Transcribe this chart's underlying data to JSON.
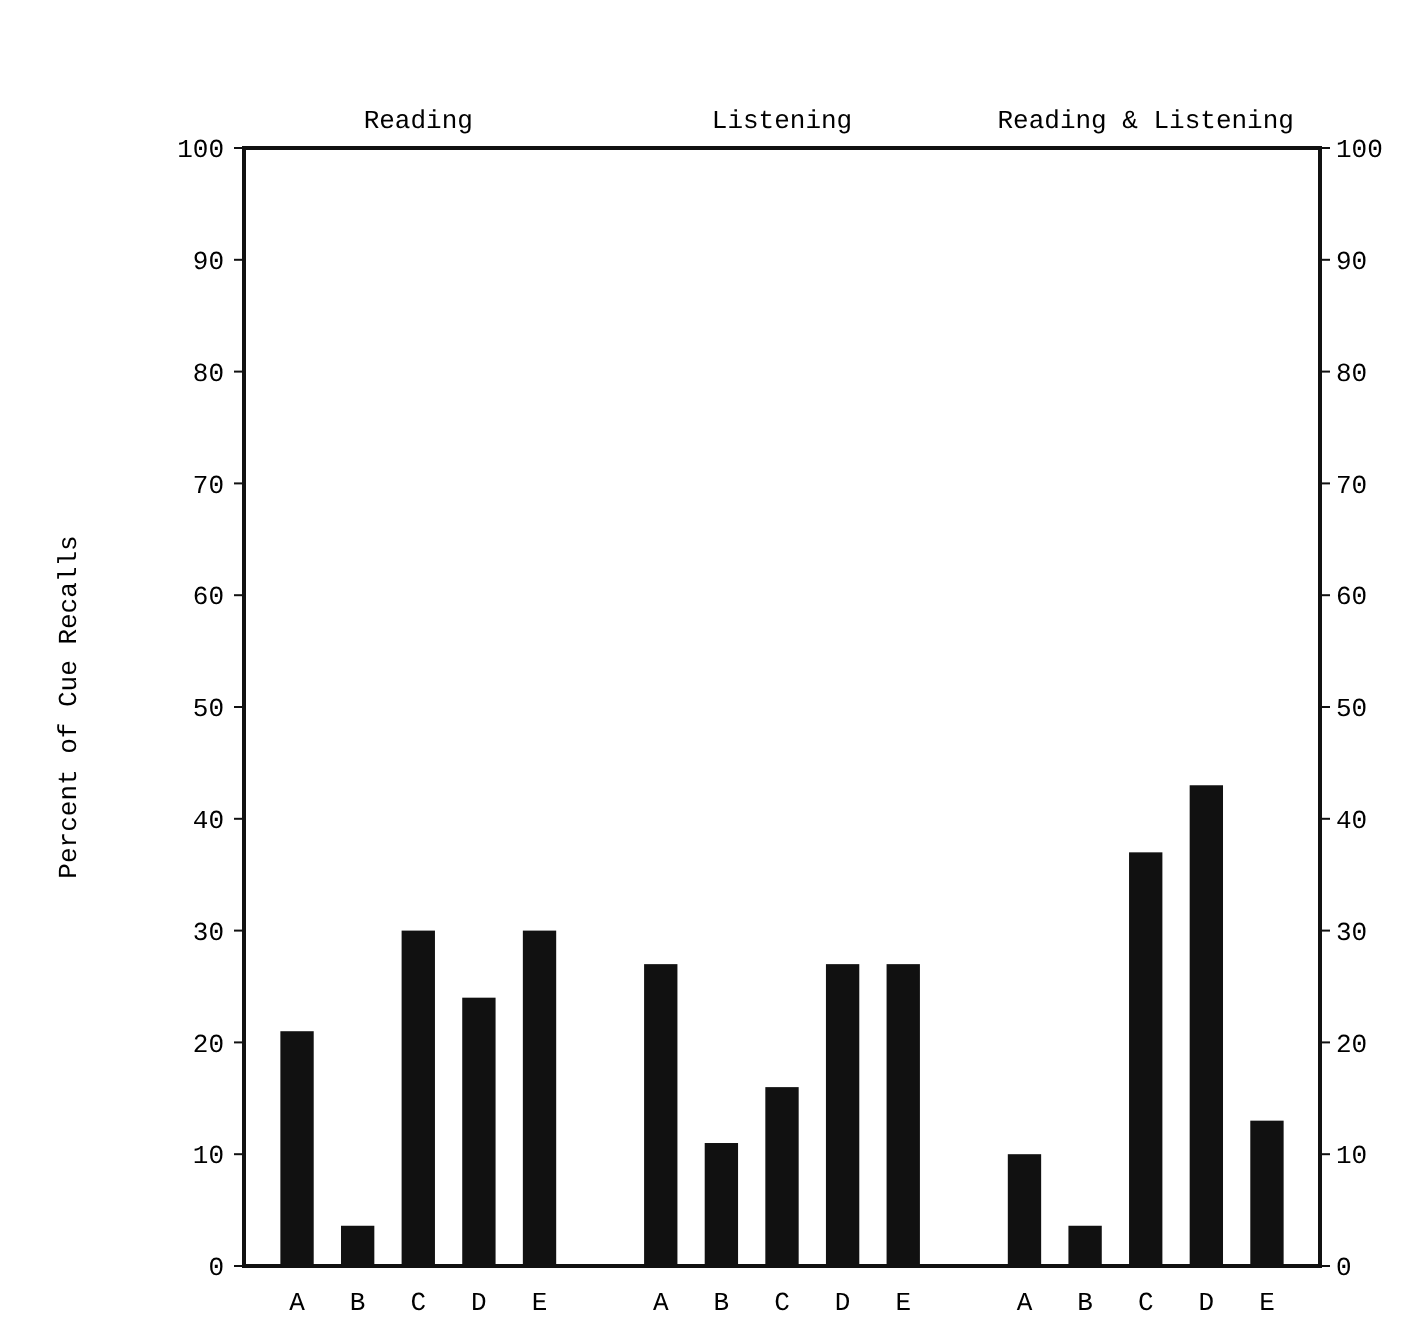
{
  "chart_data": {
    "type": "bar",
    "ylabel": "Percent of Cue Recalls",
    "categories": [
      "A",
      "B",
      "C",
      "D",
      "E",
      null,
      "A",
      "B",
      "C",
      "D",
      "E",
      null,
      "A",
      "B",
      "C",
      "D",
      "E"
    ],
    "values": [
      21,
      3.6,
      30,
      24,
      30,
      null,
      27,
      11,
      16,
      27,
      27,
      null,
      10,
      3.6,
      37,
      43,
      13
    ],
    "color": "#111111",
    "ylim": [
      0,
      100
    ],
    "yticks": [
      0,
      10,
      20,
      30,
      40,
      50,
      60,
      70,
      80,
      90,
      100
    ],
    "y2lim": [
      0,
      100
    ],
    "y2ticks": [
      0,
      10,
      20,
      30,
      40,
      50,
      60,
      70,
      80,
      90,
      100
    ],
    "annotations": [
      "Reading",
      "Listening",
      "Reading & Listening"
    ],
    "grid": false
  }
}
